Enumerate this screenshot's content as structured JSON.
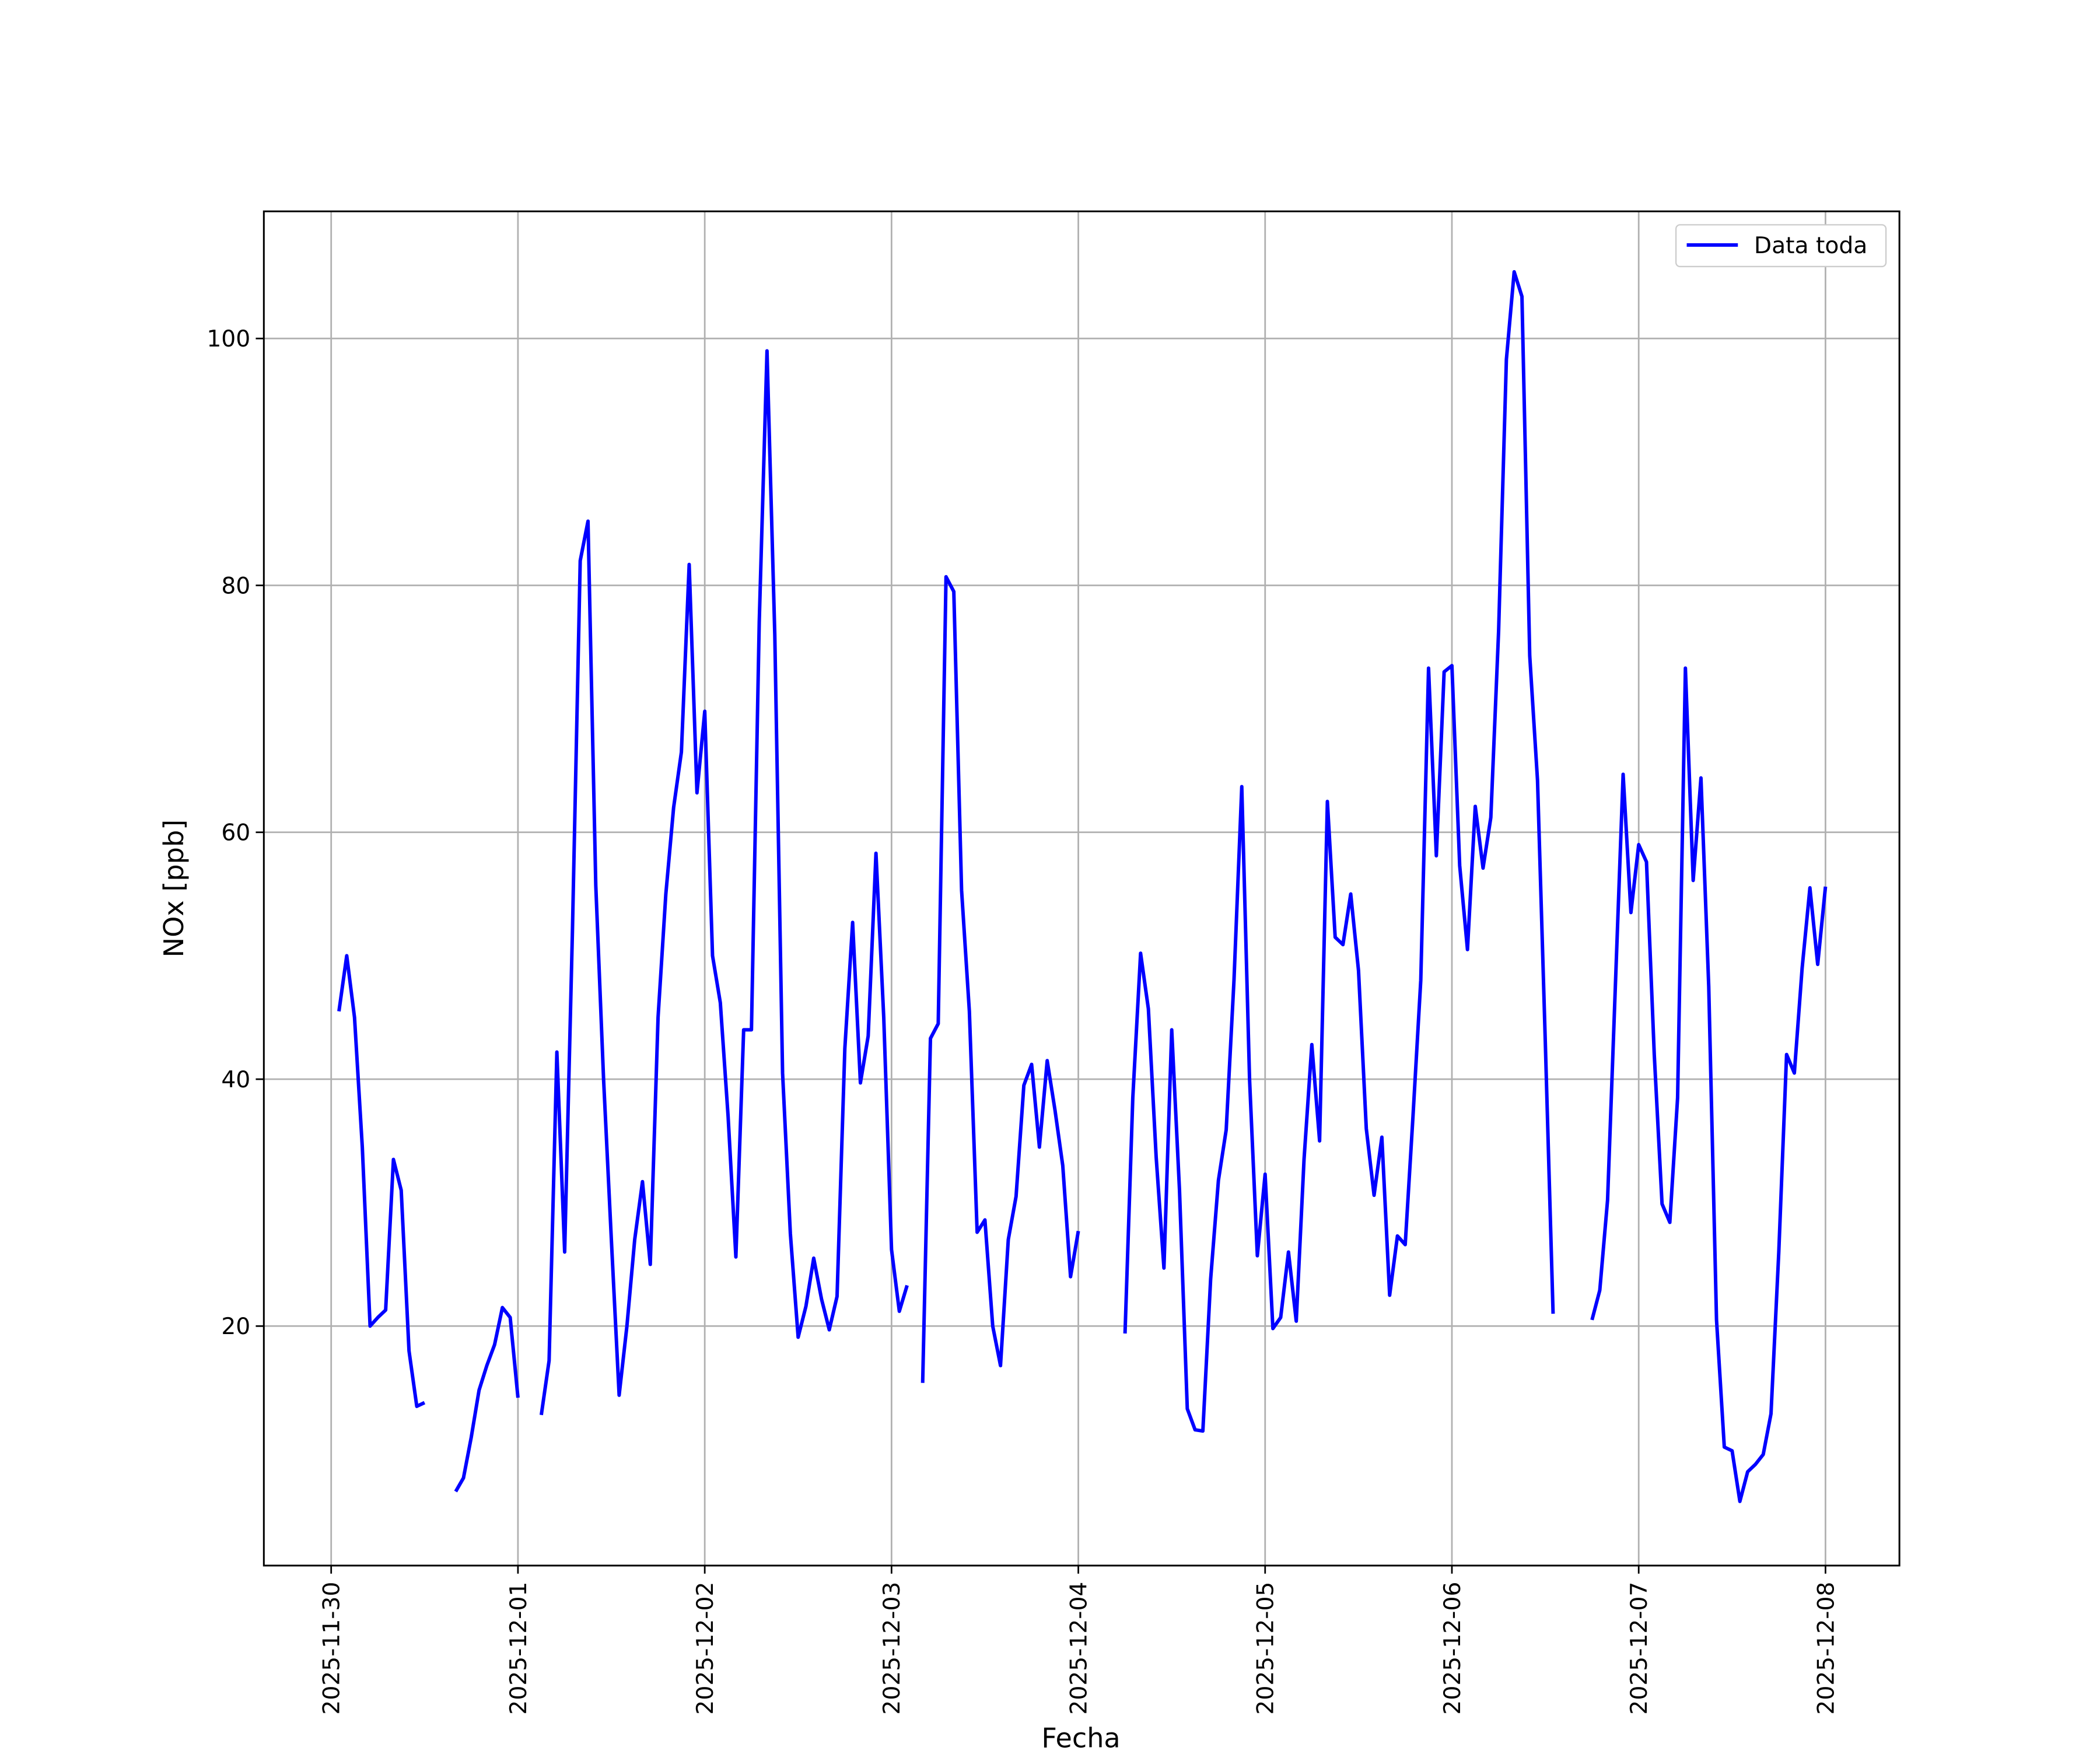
{
  "chart_data": {
    "type": "line",
    "x_label": "Fecha",
    "y_label": "NOx [ppb]",
    "x": [
      "2025-11-30 01:00",
      "2025-11-30 02:00",
      "2025-11-30 03:00",
      "2025-11-30 04:00",
      "2025-11-30 05:00",
      "2025-11-30 06:00",
      "2025-11-30 07:00",
      "2025-11-30 08:00",
      "2025-11-30 09:00",
      "2025-11-30 10:00",
      "2025-11-30 11:00",
      "2025-11-30 12:00",
      "2025-11-30 13:00",
      "2025-11-30 14:00",
      "2025-11-30 15:00",
      "2025-11-30 16:00",
      "2025-11-30 17:00",
      "2025-11-30 18:00",
      "2025-11-30 19:00",
      "2025-11-30 20:00",
      "2025-11-30 21:00",
      "2025-11-30 22:00",
      "2025-11-30 23:00",
      "2025-12-01 00:00",
      "2025-12-01 01:00",
      "2025-12-01 02:00",
      "2025-12-01 03:00",
      "2025-12-01 04:00",
      "2025-12-01 05:00",
      "2025-12-01 06:00",
      "2025-12-01 07:00",
      "2025-12-01 08:00",
      "2025-12-01 09:00",
      "2025-12-01 10:00",
      "2025-12-01 11:00",
      "2025-12-01 12:00",
      "2025-12-01 13:00",
      "2025-12-01 14:00",
      "2025-12-01 15:00",
      "2025-12-01 16:00",
      "2025-12-01 17:00",
      "2025-12-01 18:00",
      "2025-12-01 19:00",
      "2025-12-01 20:00",
      "2025-12-01 21:00",
      "2025-12-01 22:00",
      "2025-12-01 23:00",
      "2025-12-02 00:00",
      "2025-12-02 01:00",
      "2025-12-02 02:00",
      "2025-12-02 03:00",
      "2025-12-02 04:00",
      "2025-12-02 05:00",
      "2025-12-02 06:00",
      "2025-12-02 07:00",
      "2025-12-02 08:00",
      "2025-12-02 09:00",
      "2025-12-02 10:00",
      "2025-12-02 11:00",
      "2025-12-02 12:00",
      "2025-12-02 13:00",
      "2025-12-02 14:00",
      "2025-12-02 15:00",
      "2025-12-02 16:00",
      "2025-12-02 17:00",
      "2025-12-02 18:00",
      "2025-12-02 19:00",
      "2025-12-02 20:00",
      "2025-12-02 21:00",
      "2025-12-02 22:00",
      "2025-12-02 23:00",
      "2025-12-03 00:00",
      "2025-12-03 01:00",
      "2025-12-03 02:00",
      "2025-12-03 03:00",
      "2025-12-03 04:00",
      "2025-12-03 05:00",
      "2025-12-03 06:00",
      "2025-12-03 07:00",
      "2025-12-03 08:00",
      "2025-12-03 09:00",
      "2025-12-03 10:00",
      "2025-12-03 11:00",
      "2025-12-03 12:00",
      "2025-12-03 13:00",
      "2025-12-03 14:00",
      "2025-12-03 15:00",
      "2025-12-03 16:00",
      "2025-12-03 17:00",
      "2025-12-03 18:00",
      "2025-12-03 19:00",
      "2025-12-03 20:00",
      "2025-12-03 21:00",
      "2025-12-03 22:00",
      "2025-12-03 23:00",
      "2025-12-04 00:00",
      "2025-12-04 01:00",
      "2025-12-04 02:00",
      "2025-12-04 03:00",
      "2025-12-04 04:00",
      "2025-12-04 05:00",
      "2025-12-04 06:00",
      "2025-12-04 07:00",
      "2025-12-04 08:00",
      "2025-12-04 09:00",
      "2025-12-04 10:00",
      "2025-12-04 11:00",
      "2025-12-04 12:00",
      "2025-12-04 13:00",
      "2025-12-04 14:00",
      "2025-12-04 15:00",
      "2025-12-04 16:00",
      "2025-12-04 17:00",
      "2025-12-04 18:00",
      "2025-12-04 19:00",
      "2025-12-04 20:00",
      "2025-12-04 21:00",
      "2025-12-04 22:00",
      "2025-12-04 23:00",
      "2025-12-05 00:00",
      "2025-12-05 01:00",
      "2025-12-05 02:00",
      "2025-12-05 03:00",
      "2025-12-05 04:00",
      "2025-12-05 05:00",
      "2025-12-05 06:00",
      "2025-12-05 07:00",
      "2025-12-05 08:00",
      "2025-12-05 09:00",
      "2025-12-05 10:00",
      "2025-12-05 11:00",
      "2025-12-05 12:00",
      "2025-12-05 13:00",
      "2025-12-05 14:00",
      "2025-12-05 15:00",
      "2025-12-05 16:00",
      "2025-12-05 17:00",
      "2025-12-05 18:00",
      "2025-12-05 19:00",
      "2025-12-05 20:00",
      "2025-12-05 21:00",
      "2025-12-05 22:00",
      "2025-12-05 23:00",
      "2025-12-06 00:00",
      "2025-12-06 01:00",
      "2025-12-06 02:00",
      "2025-12-06 03:00",
      "2025-12-06 04:00",
      "2025-12-06 05:00",
      "2025-12-06 06:00",
      "2025-12-06 07:00",
      "2025-12-06 08:00",
      "2025-12-06 09:00",
      "2025-12-06 10:00",
      "2025-12-06 11:00",
      "2025-12-06 12:00",
      "2025-12-06 13:00",
      "2025-12-06 14:00",
      "2025-12-06 15:00",
      "2025-12-06 16:00",
      "2025-12-06 17:00",
      "2025-12-06 18:00",
      "2025-12-06 19:00",
      "2025-12-06 20:00",
      "2025-12-06 21:00",
      "2025-12-06 22:00",
      "2025-12-06 23:00",
      "2025-12-07 00:00",
      "2025-12-07 01:00",
      "2025-12-07 02:00",
      "2025-12-07 03:00",
      "2025-12-07 04:00",
      "2025-12-07 05:00",
      "2025-12-07 06:00",
      "2025-12-07 07:00",
      "2025-12-07 08:00",
      "2025-12-07 09:00",
      "2025-12-07 10:00",
      "2025-12-07 11:00",
      "2025-12-07 12:00",
      "2025-12-07 13:00",
      "2025-12-07 14:00",
      "2025-12-07 15:00",
      "2025-12-07 16:00",
      "2025-12-07 17:00",
      "2025-12-07 18:00",
      "2025-12-07 19:00",
      "2025-12-07 20:00",
      "2025-12-07 21:00",
      "2025-12-07 22:00",
      "2025-12-07 23:00",
      "2025-12-08 00:00"
    ],
    "series": [
      {
        "name": "Data toda",
        "color": "#0000ff",
        "values": [
          45.5,
          50,
          45,
          34.5,
          20,
          20.7,
          21.3,
          33.5,
          31,
          18,
          13.5,
          13.8,
          null,
          null,
          null,
          6.6,
          7.7,
          11,
          14.8,
          16.8,
          18.5,
          21.5,
          20.7,
          14.2,
          null,
          null,
          12.8,
          17.2,
          42.2,
          26,
          52,
          82,
          85.2,
          55.7,
          40,
          27,
          14.4,
          20,
          27,
          31.7,
          25,
          45,
          55,
          62,
          66.5,
          81.7,
          63.2,
          69.8,
          50,
          46.2,
          37,
          25.6,
          44,
          44,
          77,
          99,
          76,
          40.5,
          27.5,
          19.1,
          21.6,
          25.5,
          22.2,
          19.7,
          22.4,
          42.5,
          52.7,
          39.7,
          43.5,
          58.3,
          45,
          26.2,
          21.2,
          23.3,
          null,
          15.4,
          43.3,
          44.5,
          80.7,
          79.5,
          55.3,
          45.5,
          27.6,
          28.6,
          20,
          16.8,
          27,
          30.5,
          39.5,
          41.2,
          34.5,
          41.5,
          37.5,
          33,
          24,
          27.7,
          null,
          null,
          null,
          null,
          null,
          19.4,
          38.5,
          50.2,
          45.7,
          33.7,
          24.7,
          44,
          31,
          13.3,
          11.6,
          11.5,
          23.8,
          31.8,
          35.9,
          48,
          63.7,
          40,
          25.7,
          32.3,
          19.8,
          20.7,
          26,
          20.4,
          33.5,
          42.8,
          35,
          62.5,
          51.5,
          50.9,
          55,
          48.8,
          36,
          30.6,
          35.3,
          22.5,
          27.3,
          26.6,
          37,
          48,
          73.3,
          58.1,
          73,
          73.5,
          57.3,
          50.5,
          62.1,
          57.1,
          61.2,
          76.3,
          98.3,
          105.4,
          103.4,
          74.3,
          64.2,
          43,
          21,
          null,
          null,
          null,
          null,
          20.5,
          22.9,
          30.2,
          47.5,
          64.7,
          53.5,
          59,
          57.6,
          42,
          29.9,
          28.4,
          38.5,
          73.3,
          56.1,
          64.4,
          47.5,
          20.5,
          10.2,
          9.9,
          5.8,
          8.2,
          8.8,
          9.6,
          12.9,
          26,
          42,
          40.5,
          49,
          55.5,
          49.3,
          55.6
        ]
      }
    ],
    "xlim": [
      "2025-11-29 15:21",
      "2025-12-08 09:30"
    ],
    "xticks": [
      "2025-11-30",
      "2025-12-01",
      "2025-12-02",
      "2025-12-03",
      "2025-12-04",
      "2025-12-05",
      "2025-12-06",
      "2025-12-07",
      "2025-12-08"
    ],
    "ylim": [
      0.6,
      110.3
    ],
    "yticks": [
      20,
      40,
      60,
      80,
      100
    ],
    "grid": true,
    "legend": "upper right"
  }
}
